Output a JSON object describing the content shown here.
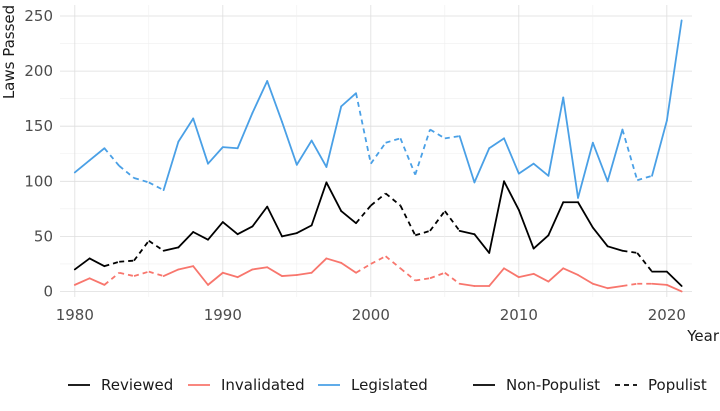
{
  "chart_data": {
    "type": "line",
    "title": "",
    "xlabel": "Year",
    "ylabel": "Laws Passed",
    "xlim": [
      1979,
      2021.7
    ],
    "ylim": [
      -5,
      260
    ],
    "xticks": [
      1980,
      1990,
      2000,
      2010,
      2020
    ],
    "yticks": [
      0,
      50,
      100,
      150,
      200,
      250
    ],
    "xtick_labels": [
      "1980",
      "1990",
      "2000",
      "2010",
      "2020"
    ],
    "ytick_labels": [
      "0",
      "50",
      "100",
      "150",
      "200",
      "250"
    ],
    "grid": true,
    "legend_position": "bottom",
    "colors": {
      "Reviewed": "#000000",
      "Invalidated": "#f8766d",
      "Legislated": "#4aa0e6"
    },
    "x": [
      1980,
      1981,
      1982,
      1983,
      1984,
      1985,
      1986,
      1987,
      1988,
      1989,
      1990,
      1991,
      1992,
      1993,
      1994,
      1995,
      1996,
      1997,
      1998,
      1999,
      2000,
      2001,
      2002,
      2003,
      2004,
      2005,
      2006,
      2007,
      2008,
      2009,
      2010,
      2011,
      2012,
      2013,
      2014,
      2015,
      2016,
      2017,
      2018,
      2019,
      2020,
      2021
    ],
    "regime": [
      "N",
      "N",
      "N",
      "P",
      "P",
      "P",
      "N",
      "N",
      "N",
      "N",
      "N",
      "N",
      "N",
      "N",
      "N",
      "N",
      "N",
      "N",
      "N",
      "N",
      "P",
      "P",
      "P",
      "P",
      "P",
      "P",
      "N",
      "N",
      "N",
      "N",
      "N",
      "N",
      "N",
      "N",
      "N",
      "N",
      "N",
      "N",
      "P",
      "N",
      "N",
      "N"
    ],
    "series": [
      {
        "name": "Reviewed",
        "values": [
          20,
          30,
          23,
          27,
          28,
          46,
          37,
          40,
          54,
          47,
          63,
          52,
          59,
          77,
          50,
          53,
          60,
          99,
          73,
          62,
          78,
          89,
          78,
          51,
          55,
          73,
          55,
          52,
          35,
          100,
          74,
          39,
          51,
          81,
          81,
          58,
          41,
          37,
          35,
          18,
          18,
          5
        ]
      },
      {
        "name": "Invalidated",
        "values": [
          6,
          12,
          6,
          17,
          14,
          18,
          14,
          20,
          23,
          6,
          17,
          13,
          20,
          22,
          14,
          15,
          17,
          30,
          26,
          17,
          25,
          32,
          21,
          10,
          12,
          17,
          7,
          5,
          5,
          21,
          13,
          16,
          9,
          21,
          15,
          7,
          3,
          5,
          7,
          7,
          6,
          0
        ]
      },
      {
        "name": "Legislated",
        "values": [
          108,
          119,
          130,
          114,
          103,
          99,
          92,
          136,
          157,
          116,
          131,
          130,
          162,
          191,
          154,
          115,
          137,
          113,
          168,
          180,
          116,
          135,
          139,
          106,
          147,
          139,
          141,
          99,
          130,
          139,
          107,
          116,
          105,
          176,
          85,
          135,
          100,
          147,
          101,
          105,
          155,
          246
        ]
      }
    ],
    "legend": {
      "series_items": [
        {
          "label": "Reviewed",
          "color": "#000000"
        },
        {
          "label": "Invalidated",
          "color": "#f8766d"
        },
        {
          "label": "Legislated",
          "color": "#4aa0e6"
        }
      ],
      "regime_items": [
        {
          "label": "Non-Populist",
          "dash": "solid"
        },
        {
          "label": "Populist",
          "dash": "dashed"
        }
      ]
    }
  }
}
